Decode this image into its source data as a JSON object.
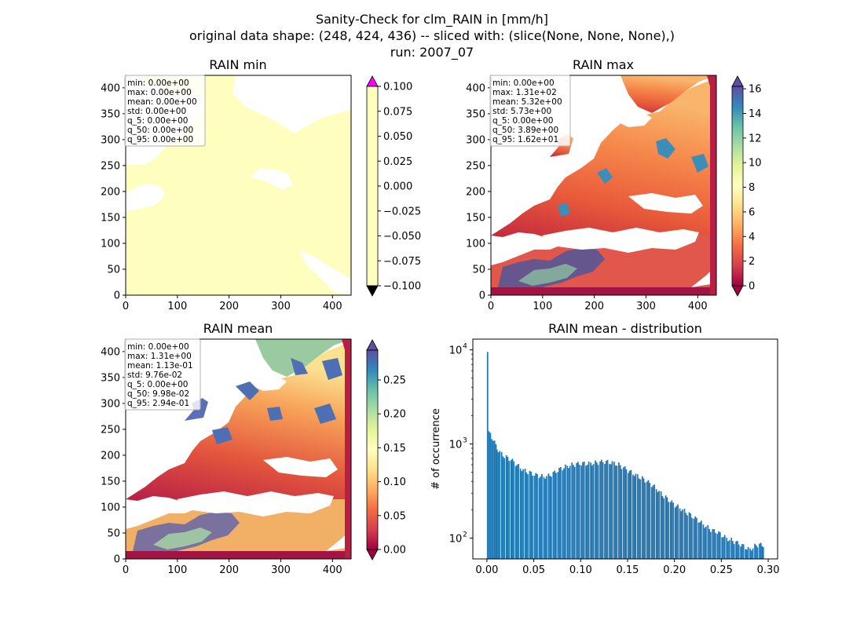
{
  "suptitle": [
    "Sanity-Check for clm_RAIN in [mm/h]",
    "original data shape: (248, 424, 436) -- sliced with: (slice(None, None, None),)",
    "run: 2007_07"
  ],
  "colors": {
    "land_uniform": "#fefebe",
    "hist_bar": "#1f77b4",
    "over_color": "#ff00ff",
    "under_color": "#000000"
  },
  "chart_data": [
    {
      "type": "heatmap",
      "title": "RAIN min",
      "xlim": [
        0,
        436
      ],
      "ylim": [
        0,
        424
      ],
      "xticks": [
        0,
        100,
        200,
        300,
        400
      ],
      "yticks": [
        0,
        50,
        100,
        150,
        200,
        250,
        300,
        350,
        400
      ],
      "colorbar": {
        "vmin": -0.1,
        "vmax": 0.1,
        "ticks": [
          "−0.100",
          "−0.075",
          "−0.050",
          "−0.025",
          "0.000",
          "0.025",
          "0.050",
          "0.075",
          "0.100"
        ],
        "extend_top_color": "#ff00ff",
        "extend_bottom_color": "#000000"
      },
      "stats": [
        "min: 0.00e+00",
        "max: 0.00e+00",
        "mean: 0.00e+00",
        "std: 0.00e+00",
        "q_5: 0.00e+00",
        "q_50: 0.00e+00",
        "q_95: 0.00e+00"
      ]
    },
    {
      "type": "heatmap",
      "title": "RAIN max",
      "xlim": [
        0,
        436
      ],
      "ylim": [
        0,
        424
      ],
      "xticks": [
        0,
        100,
        200,
        300,
        400
      ],
      "yticks": [
        0,
        50,
        100,
        150,
        200,
        250,
        300,
        350,
        400
      ],
      "colorbar": {
        "vmin": 0,
        "vmax": 16.2,
        "ticks": [
          "0",
          "2",
          "4",
          "6",
          "8",
          "10",
          "12",
          "14",
          "16"
        ]
      },
      "stats": [
        "min: 0.00e+00",
        "max: 1.31e+02",
        "mean: 5.32e+00",
        "std: 5.73e+00",
        "q_5: 0.00e+00",
        "q_50: 3.89e+00",
        "q_95: 1.62e+01"
      ]
    },
    {
      "type": "heatmap",
      "title": "RAIN mean",
      "xlim": [
        0,
        436
      ],
      "ylim": [
        0,
        424
      ],
      "xticks": [
        0,
        100,
        200,
        300,
        400
      ],
      "yticks": [
        0,
        50,
        100,
        150,
        200,
        250,
        300,
        350,
        400
      ],
      "colorbar": {
        "vmin": 0,
        "vmax": 0.294,
        "ticks": [
          "0.00",
          "0.05",
          "0.10",
          "0.15",
          "0.20",
          "0.25"
        ]
      },
      "stats": [
        "min: 0.00e+00",
        "max: 1.31e+00",
        "mean: 1.13e-01",
        "std: 9.76e-02",
        "q_5: 0.00e+00",
        "q_50: 9.98e-02",
        "q_95: 2.94e-01"
      ]
    },
    {
      "type": "bar",
      "title": "RAIN mean - distribution",
      "xlabel": "",
      "ylabel": "# of occurrence",
      "yscale": "log",
      "xlim": [
        -0.015,
        0.31
      ],
      "ylim": [
        60,
        13000
      ],
      "xticks": [
        "0.00",
        "0.05",
        "0.10",
        "0.15",
        "0.20",
        "0.25",
        "0.30"
      ],
      "yticks": [
        {
          "exp": "2",
          "value": 100
        },
        {
          "exp": "3",
          "value": 1000
        },
        {
          "exp": "4",
          "value": 10000
        }
      ],
      "bin_width": 0.00147,
      "bins": [
        [
          0.0,
          9500
        ],
        [
          0.003,
          1300
        ],
        [
          0.006,
          1100
        ],
        [
          0.01,
          900
        ],
        [
          0.015,
          790
        ],
        [
          0.02,
          720
        ],
        [
          0.025,
          680
        ],
        [
          0.03,
          620
        ],
        [
          0.035,
          560
        ],
        [
          0.04,
          520
        ],
        [
          0.045,
          495
        ],
        [
          0.05,
          470
        ],
        [
          0.055,
          460
        ],
        [
          0.06,
          450
        ],
        [
          0.065,
          460
        ],
        [
          0.07,
          485
        ],
        [
          0.075,
          520
        ],
        [
          0.08,
          555
        ],
        [
          0.085,
          585
        ],
        [
          0.09,
          600
        ],
        [
          0.095,
          610
        ],
        [
          0.1,
          615
        ],
        [
          0.105,
          620
        ],
        [
          0.11,
          625
        ],
        [
          0.115,
          630
        ],
        [
          0.12,
          640
        ],
        [
          0.125,
          645
        ],
        [
          0.13,
          640
        ],
        [
          0.135,
          630
        ],
        [
          0.14,
          600
        ],
        [
          0.145,
          560
        ],
        [
          0.15,
          520
        ],
        [
          0.155,
          490
        ],
        [
          0.16,
          460
        ],
        [
          0.165,
          430
        ],
        [
          0.17,
          400
        ],
        [
          0.175,
          370
        ],
        [
          0.18,
          340
        ],
        [
          0.185,
          300
        ],
        [
          0.19,
          270
        ],
        [
          0.195,
          245
        ],
        [
          0.2,
          225
        ],
        [
          0.205,
          210
        ],
        [
          0.21,
          195
        ],
        [
          0.215,
          180
        ],
        [
          0.22,
          165
        ],
        [
          0.225,
          155
        ],
        [
          0.23,
          140
        ],
        [
          0.235,
          130
        ],
        [
          0.24,
          120
        ],
        [
          0.245,
          115
        ],
        [
          0.25,
          108
        ],
        [
          0.255,
          100
        ],
        [
          0.26,
          95
        ],
        [
          0.265,
          90
        ],
        [
          0.27,
          85
        ],
        [
          0.275,
          80
        ],
        [
          0.28,
          76
        ],
        [
          0.285,
          82
        ],
        [
          0.29,
          86
        ],
        [
          0.294,
          80
        ]
      ]
    }
  ]
}
